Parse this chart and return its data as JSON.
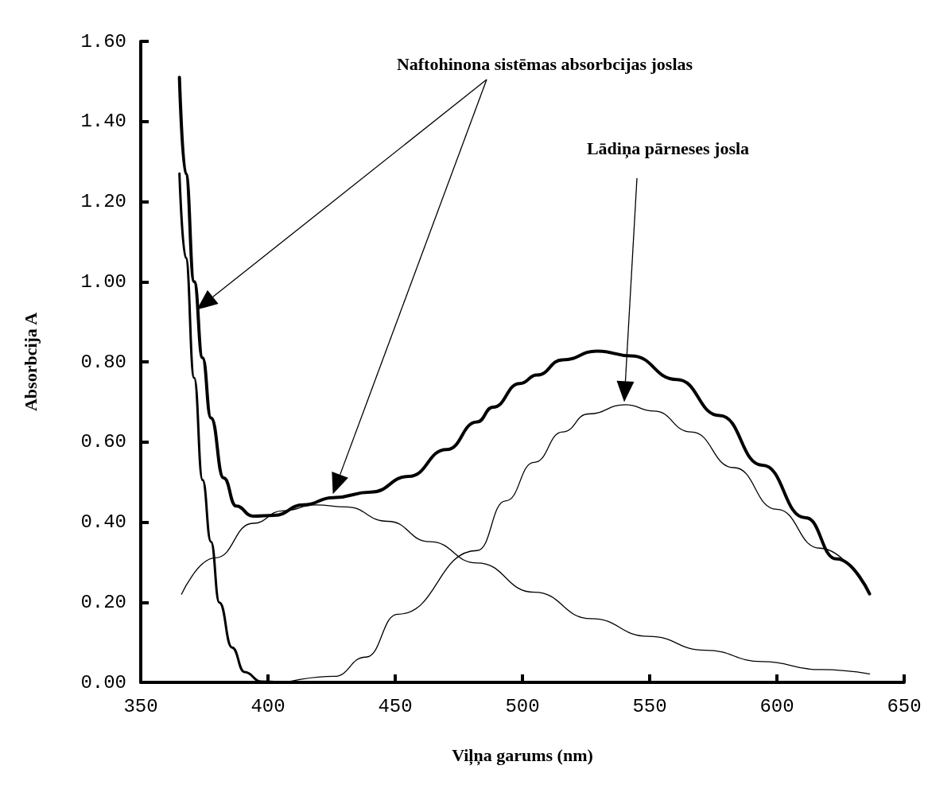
{
  "chart_data": {
    "type": "line",
    "xlabel": "Viļņa garums (nm)",
    "ylabel": "Absorbcija A",
    "annotations": [
      "Naftohinona sistēmas absorbcijas joslas",
      "Lādiņa pārneses josla"
    ],
    "xlim": [
      350,
      650
    ],
    "xticks": [
      350,
      400,
      450,
      500,
      550,
      600,
      650
    ],
    "ylim": [
      0,
      1.6
    ],
    "yticks": [
      {
        "value": 0,
        "label": "0.00"
      },
      {
        "value": 0.2,
        "label": "0.20"
      },
      {
        "value": 0.4,
        "label": "0.40"
      },
      {
        "value": 0.6,
        "label": "0.60"
      },
      {
        "value": 0.8,
        "label": "0.80"
      },
      {
        "value": 1.0,
        "label": "1.00"
      },
      {
        "value": 1.2,
        "label": "1.20"
      },
      {
        "value": 1.4,
        "label": "1.40"
      },
      {
        "value": 1.6,
        "label": "1.60"
      }
    ],
    "grid": false,
    "marker": "none",
    "line_style": "solid",
    "series": [
      {
        "color": "#000000",
        "x": [
          365.2,
          367.7,
          371.0,
          374.3,
          377.6,
          382.6,
          387.5,
          394.1,
          402.4,
          414.0,
          425.6,
          440.5,
          455.3,
          470.2,
          482.2,
          488.4,
          499.0,
          505.7,
          515.8,
          529.3,
          542.7,
          560.7,
          577.5,
          594.3,
          611.2,
          623.5,
          636.4
        ],
        "values": [
          1.51,
          1.27,
          1.0,
          0.81,
          0.66,
          0.51,
          0.44,
          0.415,
          0.417,
          0.443,
          0.461,
          0.475,
          0.514,
          0.581,
          0.65,
          0.687,
          0.746,
          0.767,
          0.805,
          0.827,
          0.815,
          0.756,
          0.666,
          0.542,
          0.411,
          0.308,
          0.221
        ]
      },
      {
        "color": "#000000",
        "x": [
          365.2,
          367.7,
          371.0,
          374.3,
          377.6,
          380.9,
          385.9,
          390.8,
          397.4,
          405.0
        ],
        "values": [
          1.27,
          1.06,
          0.76,
          0.505,
          0.351,
          0.199,
          0.087,
          0.026,
          0.002,
          0.0
        ]
      },
      {
        "color": "#000000",
        "x": [
          407.0,
          426.0,
          438.4,
          451.0,
          482.2,
          493.4,
          504.6,
          515.8,
          525.9,
          540.5,
          551.7,
          566.3,
          583.1,
          599.9,
          616.8,
          636.4
        ],
        "values": [
          0.0,
          0.015,
          0.063,
          0.17,
          0.329,
          0.453,
          0.549,
          0.625,
          0.67,
          0.693,
          0.677,
          0.625,
          0.536,
          0.432,
          0.335,
          0.221
        ]
      },
      {
        "color": "#000000",
        "x": [
          366.0,
          379.3,
          394.1,
          405.7,
          418.9,
          430.5,
          447.1,
          463.6,
          482.2,
          504.6,
          527.0,
          549.5,
          571.9,
          594.3,
          616.8,
          636.4
        ],
        "values": [
          0.22,
          0.311,
          0.397,
          0.428,
          0.443,
          0.438,
          0.402,
          0.351,
          0.298,
          0.225,
          0.159,
          0.115,
          0.08,
          0.052,
          0.032,
          0.021
        ]
      }
    ]
  }
}
